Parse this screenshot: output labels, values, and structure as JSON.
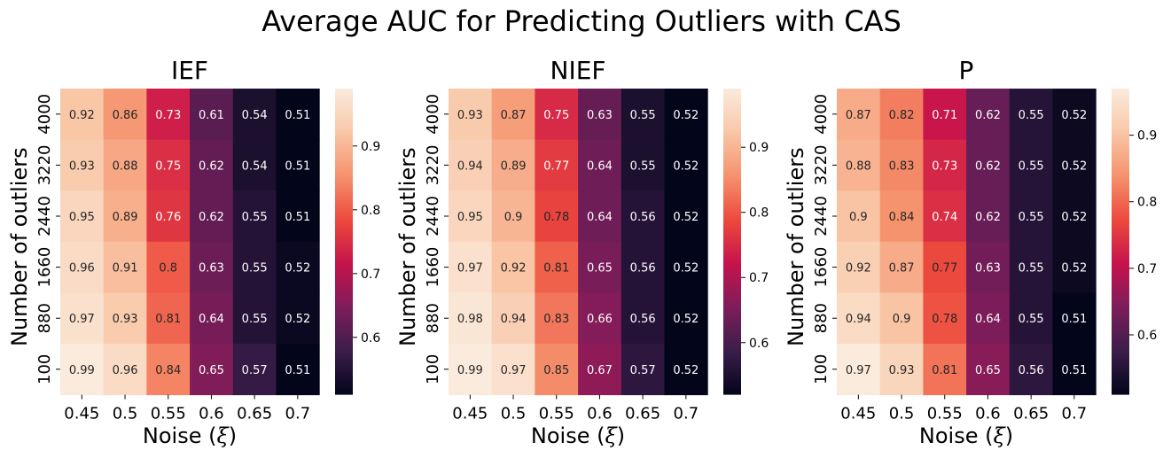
{
  "title": "Average AUC for Predicting Outliers with CAS",
  "colors": {
    "scale": [
      "#03051a",
      "#3b1d4a",
      "#7d1d5a",
      "#c6134c",
      "#ed4a3d",
      "#f5926d",
      "#f9c7a7",
      "#faebdd"
    ]
  },
  "chart_data": [
    {
      "type": "heatmap",
      "title": "IEF",
      "xlabel_prefix": "Noise (",
      "xlabel_symbol": "ξ",
      "xlabel_suffix": ")",
      "ylabel": "Number of outliers",
      "x": [
        "0.45",
        "0.5",
        "0.55",
        "0.6",
        "0.65",
        "0.7"
      ],
      "y": [
        "4000",
        "3220",
        "2440",
        "1660",
        "880",
        "100"
      ],
      "values": [
        [
          0.92,
          0.86,
          0.73,
          0.61,
          0.54,
          0.51
        ],
        [
          0.93,
          0.88,
          0.75,
          0.62,
          0.54,
          0.51
        ],
        [
          0.95,
          0.89,
          0.76,
          0.62,
          0.55,
          0.51
        ],
        [
          0.96,
          0.91,
          0.8,
          0.63,
          0.55,
          0.52
        ],
        [
          0.97,
          0.93,
          0.81,
          0.64,
          0.55,
          0.52
        ],
        [
          0.99,
          0.96,
          0.84,
          0.65,
          0.57,
          0.51
        ]
      ],
      "colorbar": {
        "range": [
          0.51,
          0.99
        ],
        "ticks": [
          "0.6",
          "0.7",
          "0.8",
          "0.9"
        ]
      }
    },
    {
      "type": "heatmap",
      "title": "NIEF",
      "xlabel_prefix": "Noise (",
      "xlabel_symbol": "ξ",
      "xlabel_suffix": ")",
      "ylabel": "Number of outliers",
      "x": [
        "0.45",
        "0.5",
        "0.55",
        "0.6",
        "0.65",
        "0.7"
      ],
      "y": [
        "4000",
        "3220",
        "2440",
        "1660",
        "880",
        "100"
      ],
      "values": [
        [
          0.93,
          0.87,
          0.75,
          0.63,
          0.55,
          0.52
        ],
        [
          0.94,
          0.89,
          0.77,
          0.64,
          0.55,
          0.52
        ],
        [
          0.95,
          0.9,
          0.78,
          0.64,
          0.56,
          0.52
        ],
        [
          0.97,
          0.92,
          0.81,
          0.65,
          0.56,
          0.52
        ],
        [
          0.98,
          0.94,
          0.83,
          0.66,
          0.56,
          0.52
        ],
        [
          0.99,
          0.97,
          0.85,
          0.67,
          0.57,
          0.52
        ]
      ],
      "colorbar": {
        "range": [
          0.52,
          0.99
        ],
        "ticks": [
          "0.6",
          "0.7",
          "0.8",
          "0.9"
        ]
      }
    },
    {
      "type": "heatmap",
      "title": "P",
      "xlabel_prefix": "Noise (",
      "xlabel_symbol": "ξ",
      "xlabel_suffix": ")",
      "ylabel": "Number of outliers",
      "x": [
        "0.45",
        "0.5",
        "0.55",
        "0.6",
        "0.65",
        "0.7"
      ],
      "y": [
        "4000",
        "3220",
        "2440",
        "1660",
        "880",
        "100"
      ],
      "values": [
        [
          0.87,
          0.82,
          0.71,
          0.62,
          0.55,
          0.52
        ],
        [
          0.88,
          0.83,
          0.73,
          0.62,
          0.55,
          0.52
        ],
        [
          0.9,
          0.84,
          0.74,
          0.62,
          0.55,
          0.52
        ],
        [
          0.92,
          0.87,
          0.77,
          0.63,
          0.55,
          0.52
        ],
        [
          0.94,
          0.9,
          0.78,
          0.64,
          0.55,
          0.51
        ],
        [
          0.97,
          0.93,
          0.81,
          0.65,
          0.56,
          0.51
        ]
      ],
      "colorbar": {
        "range": [
          0.51,
          0.97
        ],
        "ticks": [
          "0.6",
          "0.7",
          "0.8",
          "0.9"
        ]
      }
    }
  ]
}
